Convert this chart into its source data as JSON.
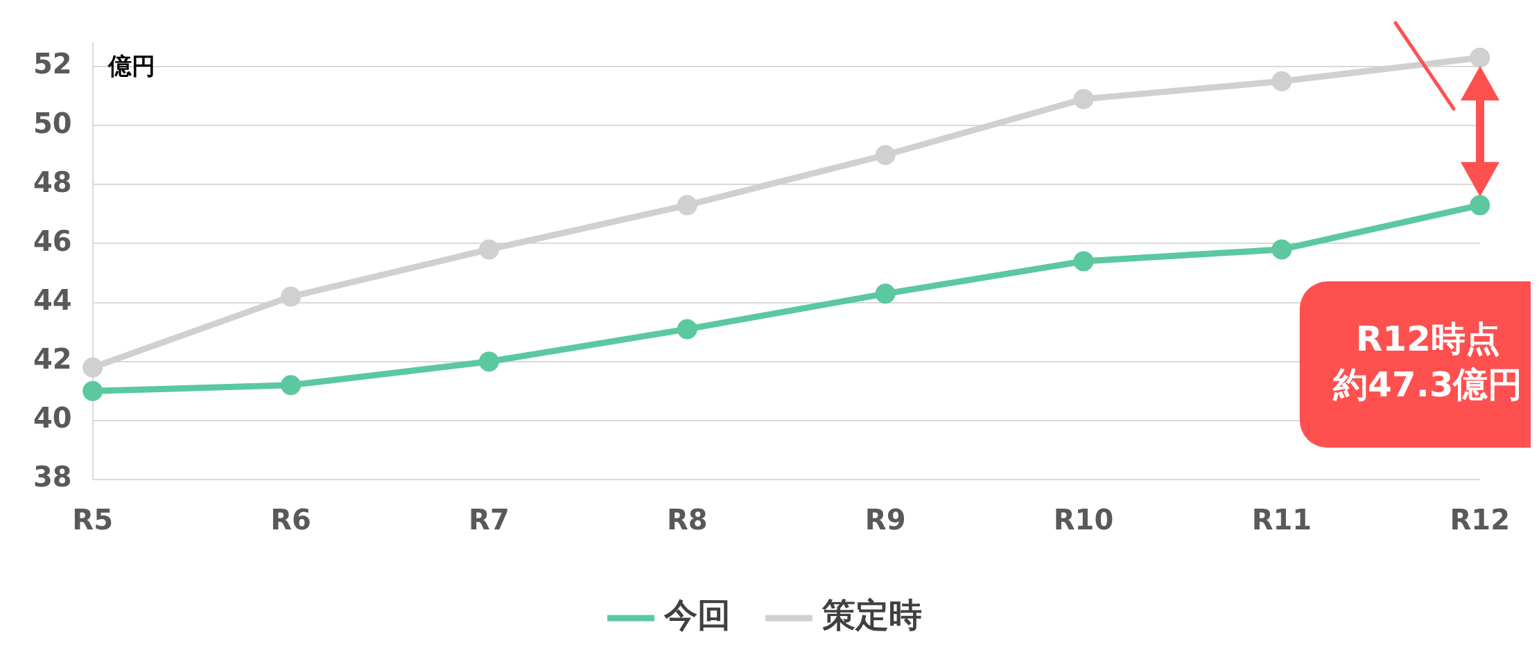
{
  "chart_data": {
    "type": "line",
    "ylabel": "億円",
    "categories": [
      "R5",
      "R6",
      "R7",
      "R8",
      "R9",
      "R10",
      "R11",
      "R12"
    ],
    "series": [
      {
        "name": "今回",
        "color": "#5bc8a0",
        "values": [
          41.0,
          41.2,
          42.0,
          43.1,
          44.3,
          45.4,
          45.8,
          47.3
        ]
      },
      {
        "name": "策定時",
        "color": "#d0d0d0",
        "values": [
          41.8,
          44.2,
          45.8,
          47.3,
          49.0,
          50.9,
          51.5,
          52.3
        ]
      }
    ],
    "ylim": [
      38,
      52.8
    ],
    "yticks": [
      38,
      40,
      42,
      44,
      46,
      48,
      50,
      52
    ],
    "grid": "y",
    "legend": "bottom",
    "marker": "circle",
    "line_style": "solid",
    "annotations": [
      "R12時点",
      "約47.3億円"
    ]
  }
}
